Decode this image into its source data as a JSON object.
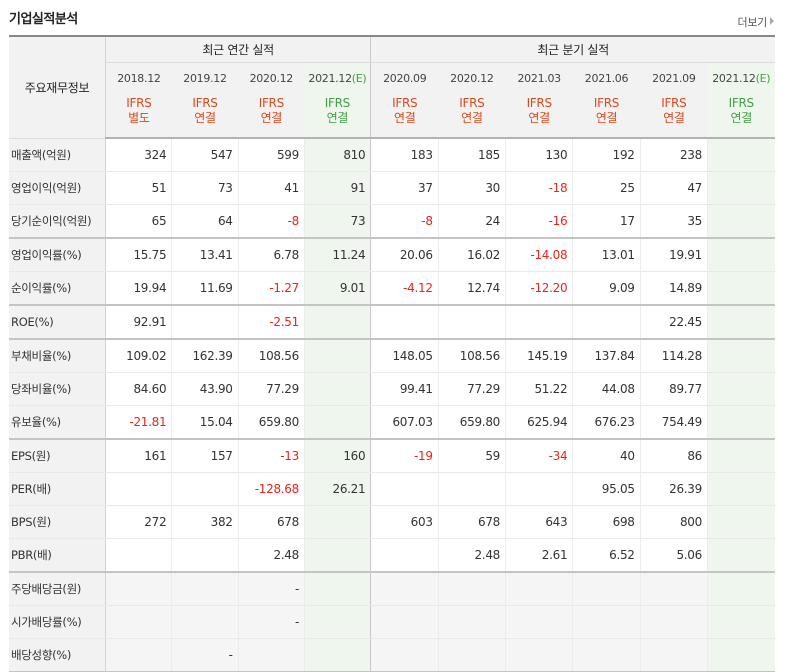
{
  "header": {
    "title": "기업실적분석",
    "more_label": "더보기"
  },
  "table": {
    "row_header_label": "주요재무정보",
    "groups": {
      "annual": "최근 연간 실적",
      "quarterly": "최근 분기 실적"
    },
    "periods": [
      {
        "date": "2018.12",
        "est": "",
        "ifrs": "IFRS",
        "basis": "별도"
      },
      {
        "date": "2019.12",
        "est": "",
        "ifrs": "IFRS",
        "basis": "연결"
      },
      {
        "date": "2020.12",
        "est": "",
        "ifrs": "IFRS",
        "basis": "연결"
      },
      {
        "date": "2021.12",
        "est": "(E)",
        "ifrs": "IFRS",
        "basis": "연결"
      },
      {
        "date": "2020.09",
        "est": "",
        "ifrs": "IFRS",
        "basis": "연결"
      },
      {
        "date": "2020.12",
        "est": "",
        "ifrs": "IFRS",
        "basis": "연결"
      },
      {
        "date": "2021.03",
        "est": "",
        "ifrs": "IFRS",
        "basis": "연결"
      },
      {
        "date": "2021.06",
        "est": "",
        "ifrs": "IFRS",
        "basis": "연결"
      },
      {
        "date": "2021.09",
        "est": "",
        "ifrs": "IFRS",
        "basis": "연결"
      },
      {
        "date": "2021.12",
        "est": "(E)",
        "ifrs": "IFRS",
        "basis": "연결"
      }
    ],
    "rows": [
      {
        "label": "매출액(억원)",
        "values": [
          "324",
          "547",
          "599",
          "810",
          "183",
          "185",
          "130",
          "192",
          "238",
          ""
        ]
      },
      {
        "label": "영업이익(억원)",
        "values": [
          "51",
          "73",
          "41",
          "91",
          "37",
          "30",
          "-18",
          "25",
          "47",
          ""
        ]
      },
      {
        "label": "당기순이익(억원)",
        "values": [
          "65",
          "64",
          "-8",
          "73",
          "-8",
          "24",
          "-16",
          "17",
          "35",
          ""
        ]
      },
      {
        "label": "영업이익률(%)",
        "values": [
          "15.75",
          "13.41",
          "6.78",
          "11.24",
          "20.06",
          "16.02",
          "-14.08",
          "13.01",
          "19.91",
          ""
        ]
      },
      {
        "label": "순이익률(%)",
        "values": [
          "19.94",
          "11.69",
          "-1.27",
          "9.01",
          "-4.12",
          "12.74",
          "-12.20",
          "9.09",
          "14.89",
          ""
        ]
      },
      {
        "label": "ROE(%)",
        "values": [
          "92.91",
          "",
          "-2.51",
          "",
          "",
          "",
          "",
          "",
          "22.45",
          ""
        ]
      },
      {
        "label": "부채비율(%)",
        "values": [
          "109.02",
          "162.39",
          "108.56",
          "",
          "148.05",
          "108.56",
          "145.19",
          "137.84",
          "114.28",
          ""
        ]
      },
      {
        "label": "당좌비율(%)",
        "values": [
          "84.60",
          "43.90",
          "77.29",
          "",
          "99.41",
          "77.29",
          "51.22",
          "44.08",
          "89.77",
          ""
        ]
      },
      {
        "label": "유보율(%)",
        "values": [
          "-21.81",
          "15.04",
          "659.80",
          "",
          "607.03",
          "659.80",
          "625.94",
          "676.23",
          "754.49",
          ""
        ]
      },
      {
        "label": "EPS(원)",
        "values": [
          "161",
          "157",
          "-13",
          "160",
          "-19",
          "59",
          "-34",
          "40",
          "86",
          ""
        ]
      },
      {
        "label": "PER(배)",
        "values": [
          "",
          "",
          "-128.68",
          "26.21",
          "",
          "",
          "",
          "95.05",
          "26.39",
          ""
        ]
      },
      {
        "label": "BPS(원)",
        "values": [
          "272",
          "382",
          "678",
          "",
          "603",
          "678",
          "643",
          "698",
          "800",
          ""
        ]
      },
      {
        "label": "PBR(배)",
        "values": [
          "",
          "",
          "2.48",
          "",
          "",
          "2.48",
          "2.61",
          "6.52",
          "5.06",
          ""
        ]
      },
      {
        "label": "주당배당금(원)",
        "values": [
          "",
          "",
          "-",
          "",
          "",
          "",
          "",
          "",
          "",
          ""
        ]
      },
      {
        "label": "시가배당률(%)",
        "values": [
          "",
          "",
          "-",
          "",
          "",
          "",
          "",
          "",
          "",
          ""
        ]
      },
      {
        "label": "배당성향(%)",
        "values": [
          "",
          "-",
          "",
          "",
          "",
          "",
          "",
          "",
          "",
          ""
        ]
      }
    ]
  },
  "colors": {
    "negative": "#e8251a",
    "ifrs": "#d94a1e",
    "estimate": "#43a047",
    "estimate_bg": "#eef6ee",
    "header_bg": "#f2f2f2"
  }
}
